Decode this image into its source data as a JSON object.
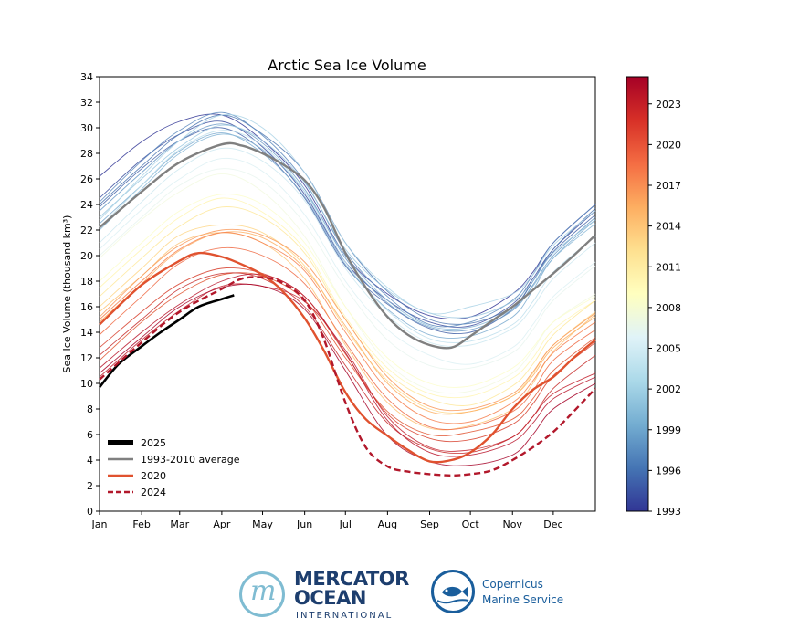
{
  "chart_data": {
    "type": "line",
    "title": "Arctic Sea Ice Volume",
    "xlabel": "",
    "ylabel": "Sea Ice Volume (thousand km³)",
    "xlim": [
      1,
      366
    ],
    "ylim": [
      0,
      34
    ],
    "x_ticks": [
      {
        "label": "Jan",
        "day": 1
      },
      {
        "label": "Feb",
        "day": 32
      },
      {
        "label": "Mar",
        "day": 60
      },
      {
        "label": "Apr",
        "day": 91
      },
      {
        "label": "May",
        "day": 121
      },
      {
        "label": "Jun",
        "day": 152
      },
      {
        "label": "Jul",
        "day": 182
      },
      {
        "label": "Aug",
        "day": 213
      },
      {
        "label": "Sep",
        "day": 244
      },
      {
        "label": "Oct",
        "day": 274
      },
      {
        "label": "Nov",
        "day": 305
      },
      {
        "label": "Dec",
        "day": 335
      }
    ],
    "y_ticks": [
      0,
      2,
      4,
      6,
      8,
      10,
      12,
      14,
      16,
      18,
      20,
      22,
      24,
      26,
      28,
      30,
      32,
      34
    ],
    "grid": false,
    "legend": {
      "placement": "lower-left",
      "entries": [
        {
          "label": "2025",
          "color": "#000000",
          "style": "solid-thick"
        },
        {
          "label": "1993-2010 average",
          "color": "#808080",
          "style": "solid"
        },
        {
          "label": "2020",
          "color": "#e0522f",
          "style": "solid"
        },
        {
          "label": "2024",
          "color": "#b2182b",
          "style": "dashed"
        }
      ]
    },
    "colorbar": {
      "min": 1993,
      "max": 2025,
      "tick_labels": [
        "2023",
        "2020",
        "2017",
        "2014",
        "2011",
        "2008",
        "2005",
        "2002",
        "1999",
        "1996",
        "1993"
      ],
      "colormap": "RdYlBu_r"
    },
    "highlighted_series": [
      {
        "name": "2025",
        "color": "#000000",
        "x": [
          1,
          15,
          32,
          46,
          60,
          74,
          91,
          100
        ],
        "y": [
          9.7,
          11.5,
          12.9,
          14.0,
          15.0,
          16.0,
          16.6,
          16.9
        ]
      },
      {
        "name": "1993-2010 average",
        "color": "#808080",
        "x": [
          1,
          32,
          60,
          91,
          106,
          121,
          135,
          152,
          166,
          182,
          197,
          213,
          228,
          244,
          260,
          274,
          290,
          305,
          320,
          335,
          350,
          366
        ],
        "y": [
          22.2,
          25.0,
          27.3,
          28.7,
          28.6,
          28.0,
          27.2,
          25.9,
          23.8,
          20.2,
          17.5,
          15.2,
          13.8,
          13.0,
          12.8,
          13.7,
          14.9,
          16.0,
          17.3,
          18.6,
          20.0,
          21.6
        ]
      },
      {
        "name": "2020",
        "color": "#e0522f",
        "x": [
          1,
          32,
          60,
          74,
          91,
          106,
          121,
          135,
          152,
          166,
          182,
          197,
          213,
          228,
          244,
          260,
          274,
          290,
          305,
          320,
          335,
          350,
          366
        ],
        "y": [
          14.6,
          17.7,
          19.6,
          20.2,
          19.9,
          19.3,
          18.5,
          17.3,
          15.1,
          12.6,
          9.3,
          7.2,
          5.9,
          4.8,
          3.9,
          4.0,
          4.6,
          6.0,
          8.0,
          9.5,
          10.5,
          12.0,
          13.4
        ]
      },
      {
        "name": "2024",
        "color": "#b2182b",
        "x": [
          1,
          32,
          60,
          91,
          106,
          121,
          135,
          152,
          166,
          182,
          197,
          213,
          228,
          244,
          260,
          274,
          290,
          305,
          320,
          335,
          350,
          366
        ],
        "y": [
          10.3,
          13.2,
          15.6,
          17.4,
          18.2,
          18.3,
          17.9,
          16.5,
          13.5,
          8.5,
          5.0,
          3.5,
          3.1,
          2.9,
          2.8,
          2.9,
          3.2,
          4.0,
          5.0,
          6.2,
          7.8,
          9.6
        ]
      }
    ],
    "background_years": [
      {
        "year": 1993,
        "color": "#313695",
        "values": [
          26.2,
          28.9,
          30.5,
          31.0,
          29.0,
          25.5,
          20.0,
          17.0,
          15.3,
          15.2,
          17.0,
          18.7,
          21.0,
          24.0
        ]
      },
      {
        "year": 1994,
        "color": "#3a4c9e",
        "values": [
          24.5,
          27.5,
          29.5,
          30.5,
          28.5,
          24.8,
          19.5,
          16.5,
          14.8,
          14.5,
          16.2,
          18.2,
          20.5,
          23.5
        ]
      },
      {
        "year": 1995,
        "color": "#4462a7",
        "values": [
          23.8,
          26.8,
          29.0,
          30.0,
          28.2,
          24.5,
          19.2,
          16.2,
          14.3,
          14.0,
          15.8,
          18.0,
          20.3,
          23.2
        ]
      },
      {
        "year": 1996,
        "color": "#4f78b2",
        "values": [
          24.0,
          27.0,
          29.5,
          31.0,
          29.5,
          26.5,
          21.0,
          17.2,
          15.0,
          14.7,
          16.0,
          18.0,
          20.5,
          23.7
        ]
      },
      {
        "year": 1997,
        "color": "#5a88bd",
        "values": [
          24.2,
          27.4,
          29.8,
          31.2,
          29.4,
          25.8,
          20.3,
          16.8,
          14.6,
          14.8,
          16.5,
          18.5,
          21.0,
          24.0
        ]
      },
      {
        "year": 1998,
        "color": "#6a9ac7",
        "values": [
          23.5,
          26.5,
          29.0,
          30.3,
          28.8,
          25.2,
          19.8,
          16.3,
          14.4,
          14.2,
          15.7,
          17.7,
          20.0,
          23.0
        ]
      },
      {
        "year": 1999,
        "color": "#78a9cf",
        "values": [
          22.5,
          25.5,
          28.2,
          29.6,
          28.0,
          24.6,
          19.3,
          15.8,
          13.8,
          13.7,
          15.2,
          17.3,
          19.8,
          22.8
        ]
      },
      {
        "year": 2000,
        "color": "#89b8d7",
        "values": [
          22.0,
          25.2,
          28.0,
          29.5,
          28.3,
          25.0,
          20.0,
          16.5,
          14.5,
          14.4,
          15.8,
          17.6,
          19.8,
          22.5
        ]
      },
      {
        "year": 2001,
        "color": "#9ac7df",
        "values": [
          23.0,
          26.0,
          28.5,
          30.2,
          29.0,
          25.7,
          20.5,
          17.3,
          15.5,
          15.2,
          16.4,
          18.0,
          20.2,
          22.8
        ]
      },
      {
        "year": 2002,
        "color": "#abd3e6",
        "values": [
          22.8,
          26.2,
          29.0,
          31.0,
          30.0,
          26.5,
          21.0,
          17.5,
          15.5,
          16.0,
          17.0,
          18.5,
          20.8,
          23.5
        ]
      },
      {
        "year": 2003,
        "color": "#bcdeec",
        "values": [
          22.2,
          25.5,
          28.3,
          29.8,
          28.6,
          25.0,
          19.5,
          15.7,
          13.5,
          13.3,
          14.6,
          16.4,
          18.7,
          21.5
        ]
      },
      {
        "year": 2004,
        "color": "#cde8f0",
        "values": [
          21.0,
          24.2,
          26.8,
          28.4,
          27.4,
          24.3,
          19.0,
          15.3,
          13.2,
          13.0,
          14.3,
          16.0,
          18.2,
          21.0
        ]
      },
      {
        "year": 2005,
        "color": "#dcf0f3",
        "values": [
          20.5,
          23.6,
          26.0,
          27.6,
          26.6,
          23.2,
          18.0,
          14.2,
          12.2,
          11.5,
          12.8,
          14.6,
          16.8,
          19.5
        ]
      },
      {
        "year": 2006,
        "color": "#e8f5ef",
        "values": [
          20.0,
          23.0,
          25.5,
          26.8,
          25.8,
          22.5,
          17.5,
          13.4,
          11.4,
          11.2,
          12.4,
          14.2,
          16.5,
          19.2
        ]
      },
      {
        "year": 2007,
        "color": "#f2f9e0",
        "values": [
          19.8,
          22.8,
          25.0,
          26.4,
          25.0,
          21.5,
          16.0,
          11.6,
          9.5,
          9.4,
          10.8,
          12.6,
          14.8,
          17.0
        ]
      },
      {
        "year": 2008,
        "color": "#fbfdcb",
        "values": [
          18.0,
          21.0,
          23.5,
          24.8,
          24.0,
          21.0,
          16.0,
          12.0,
          10.0,
          9.8,
          11.2,
          12.8,
          14.8,
          16.8
        ]
      },
      {
        "year": 2009,
        "color": "#fff4b1",
        "values": [
          17.5,
          20.5,
          23.0,
          24.5,
          23.4,
          20.5,
          15.2,
          11.2,
          9.2,
          9.0,
          10.4,
          12.0,
          14.2,
          16.5
        ]
      },
      {
        "year": 2010,
        "color": "#fee89a",
        "values": [
          16.8,
          19.8,
          22.3,
          23.8,
          23.0,
          20.2,
          15.0,
          10.8,
          8.8,
          8.3,
          9.8,
          11.5,
          13.8,
          16.5
        ]
      },
      {
        "year": 2011,
        "color": "#fed686",
        "values": [
          16.0,
          19.0,
          21.6,
          22.4,
          21.8,
          19.2,
          14.3,
          10.2,
          8.0,
          7.8,
          9.0,
          10.8,
          13.0,
          15.6
        ]
      },
      {
        "year": 2012,
        "color": "#fdc374",
        "values": [
          15.6,
          18.4,
          21.0,
          21.8,
          21.0,
          18.2,
          13.0,
          8.5,
          6.5,
          6.7,
          8.0,
          10.0,
          12.5,
          15.4
        ]
      },
      {
        "year": 2013,
        "color": "#fdae61",
        "values": [
          14.8,
          17.8,
          20.4,
          21.8,
          21.4,
          19.0,
          14.5,
          10.0,
          7.8,
          7.8,
          9.0,
          10.6,
          12.8,
          15.2
        ]
      },
      {
        "year": 2014,
        "color": "#f99656",
        "values": [
          15.2,
          18.4,
          20.8,
          22.0,
          21.6,
          19.5,
          15.0,
          10.5,
          8.2,
          8.0,
          9.2,
          10.9,
          13.0,
          15.5
        ]
      },
      {
        "year": 2015,
        "color": "#f67e4b",
        "values": [
          15.0,
          18.0,
          20.5,
          21.8,
          21.0,
          18.8,
          14.0,
          9.5,
          7.2,
          7.0,
          8.5,
          10.2,
          12.4,
          14.8
        ]
      },
      {
        "year": 2016,
        "color": "#ef6741",
        "values": [
          13.8,
          16.8,
          19.4,
          20.6,
          20.0,
          17.8,
          13.2,
          8.8,
          6.6,
          6.6,
          7.8,
          9.4,
          11.8,
          14.2
        ]
      },
      {
        "year": 2017,
        "color": "#e0522f",
        "values": [
          11.8,
          14.8,
          17.0,
          18.5,
          18.4,
          16.5,
          12.0,
          7.8,
          6.0,
          6.2,
          7.2,
          8.8,
          11.0,
          13.6
        ]
      },
      {
        "year": 2018,
        "color": "#d73e2b",
        "values": [
          12.8,
          15.6,
          17.8,
          19.0,
          18.6,
          16.8,
          12.3,
          7.6,
          5.7,
          5.6,
          6.8,
          8.4,
          10.6,
          13.2
        ]
      },
      {
        "year": 2019,
        "color": "#c62a29",
        "values": [
          12.2,
          15.0,
          17.4,
          18.6,
          18.2,
          16.0,
          11.4,
          6.9,
          4.9,
          4.6,
          5.8,
          7.4,
          9.6,
          12.2
        ]
      },
      {
        "year": 2021,
        "color": "#c21f2b",
        "values": [
          10.5,
          13.4,
          15.7,
          17.6,
          17.6,
          16.4,
          12.6,
          7.4,
          5.0,
          4.8,
          5.8,
          7.4,
          9.2,
          10.8
        ]
      },
      {
        "year": 2022,
        "color": "#b8142a",
        "values": [
          11.2,
          14.0,
          16.2,
          18.0,
          18.5,
          16.8,
          12.4,
          7.1,
          4.6,
          4.4,
          5.4,
          6.9,
          8.8,
          10.5
        ]
      },
      {
        "year": 2023,
        "color": "#a50026",
        "values": [
          10.8,
          13.6,
          16.0,
          17.5,
          17.6,
          15.8,
          11.0,
          5.9,
          3.9,
          3.6,
          4.4,
          6.0,
          8.0,
          10.0
        ]
      }
    ],
    "background_days": [
      1,
      32,
      60,
      91,
      121,
      152,
      182,
      213,
      244,
      274,
      305,
      320,
      335,
      366
    ]
  },
  "footer": {
    "mercator_line1": "MERCATOR",
    "mercator_line2": "OCEAN",
    "mercator_sub": "INTERNATIONAL",
    "copernicus_line1": "Copernicus",
    "copernicus_line2": "Marine Service"
  },
  "colors": {
    "mercator": "#1d3e6e",
    "mercator_accent": "#7fbcd2",
    "copernicus": "#1a5e9c"
  }
}
